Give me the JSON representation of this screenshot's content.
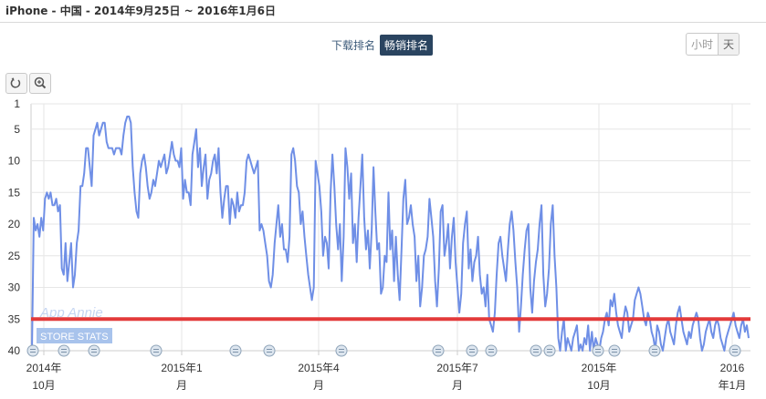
{
  "header": {
    "title": "iPhone - 中国 - 2014年9月25日 ~ 2016年1月6日"
  },
  "tabs": [
    {
      "label": "下载排名",
      "active": false
    },
    {
      "label": "畅销排名",
      "active": true
    }
  ],
  "granularity": [
    {
      "label": "小时",
      "active": false
    },
    {
      "label": "天",
      "active": true
    }
  ],
  "toolbar": {
    "reset_icon": "reset-icon",
    "zoom_icon": "zoom-icon"
  },
  "watermark": {
    "line1": "App Annie",
    "line2": "STORE STATS"
  },
  "colors": {
    "line": "#6f8fe6",
    "threshold": "#e33a3a",
    "tab_active": "#2a4460",
    "grid": "#e6e6e6"
  },
  "chart_data": {
    "type": "line",
    "title": "",
    "y_reversed": true,
    "ylim": [
      1,
      40
    ],
    "y_ticks": [
      1,
      5,
      10,
      15,
      20,
      25,
      30,
      35,
      40
    ],
    "x_ticks": [
      {
        "line1": "2014年",
        "line2": "10月"
      },
      {
        "line1": "2015年1",
        "line2": "月"
      },
      {
        "line1": "2015年4",
        "line2": "月"
      },
      {
        "line1": "2015年7",
        "line2": "月"
      },
      {
        "line1": "2015年",
        "line2": "10月"
      },
      {
        "line1": "2016",
        "line2": "年1月"
      }
    ],
    "threshold_rank": 35,
    "event_markers": 16,
    "series": [
      {
        "values": [
          40,
          19,
          21,
          20,
          22,
          19,
          21,
          16,
          15,
          16,
          15,
          17,
          17,
          16,
          18,
          17,
          27,
          28,
          23,
          29,
          26,
          23,
          30,
          28,
          23,
          21,
          14,
          14,
          12,
          8,
          8,
          11,
          14,
          6,
          5,
          4,
          6,
          5,
          4,
          4,
          7,
          8,
          8,
          8,
          9,
          8,
          8,
          8,
          9,
          6,
          4,
          3,
          3,
          4,
          11,
          15,
          18,
          19,
          12,
          10,
          9,
          11,
          14,
          16,
          15,
          13,
          14,
          12,
          10,
          11,
          10,
          9,
          12,
          11,
          9,
          7,
          9,
          10,
          10,
          11,
          8,
          16,
          13,
          15,
          15,
          17,
          9,
          7,
          5,
          11,
          8,
          14,
          11,
          9,
          16,
          13,
          12,
          10,
          9,
          12,
          8,
          15,
          19,
          16,
          14,
          14,
          20,
          16,
          17,
          19,
          15,
          18,
          17,
          17,
          15,
          10,
          9,
          10,
          11,
          12,
          11,
          10,
          21,
          20,
          21,
          23,
          25,
          29,
          30,
          28,
          23,
          20,
          17,
          22,
          20,
          24,
          24,
          26,
          22,
          9,
          8,
          10,
          14,
          15,
          20,
          18,
          22,
          25,
          28,
          30,
          32,
          30,
          10,
          12,
          14,
          18,
          25,
          22,
          23,
          27,
          15,
          9,
          14,
          20,
          24,
          20,
          29,
          22,
          8,
          11,
          16,
          12,
          23,
          20,
          26,
          19,
          14,
          9,
          19,
          24,
          21,
          27,
          21,
          11,
          18,
          24,
          23,
          31,
          30,
          25,
          26,
          15,
          24,
          21,
          29,
          22,
          28,
          32,
          24,
          16,
          13,
          20,
          19,
          17,
          20,
          22,
          29,
          25,
          33,
          30,
          25,
          24,
          22,
          16,
          19,
          22,
          29,
          33,
          27,
          18,
          17,
          25,
          23,
          20,
          27,
          22,
          19,
          26,
          30,
          34,
          31,
          23,
          20,
          18,
          27,
          24,
          29,
          26,
          25,
          22,
          28,
          31,
          30,
          33,
          28,
          35,
          36,
          37,
          34,
          28,
          23,
          22,
          25,
          27,
          29,
          24,
          20,
          18,
          21,
          26,
          30,
          37,
          33,
          28,
          24,
          21,
          20,
          30,
          34,
          29,
          26,
          24,
          20,
          17,
          28,
          33,
          31,
          27,
          20,
          17,
          25,
          30,
          38,
          40,
          37,
          35,
          40,
          38,
          39,
          40,
          38,
          37,
          36,
          40,
          39,
          40,
          38,
          39,
          36,
          40,
          37,
          40,
          38,
          39,
          40,
          38,
          37,
          35,
          34,
          36,
          32,
          33,
          31,
          34,
          36,
          37,
          38,
          35,
          33,
          34,
          37,
          36,
          35,
          32,
          31,
          30,
          31,
          33,
          35,
          36,
          34,
          35,
          37,
          38,
          40,
          36,
          37,
          39,
          40,
          38,
          36,
          35,
          37,
          38,
          39,
          36,
          34,
          33,
          35,
          37,
          38,
          39,
          37,
          38,
          36,
          35,
          34,
          35,
          38,
          40,
          39,
          37,
          36,
          35,
          37,
          38,
          36,
          35,
          36,
          38,
          39,
          40,
          38,
          37,
          36,
          35,
          34,
          36,
          37,
          38,
          36,
          35,
          37,
          36,
          38
        ]
      }
    ]
  }
}
